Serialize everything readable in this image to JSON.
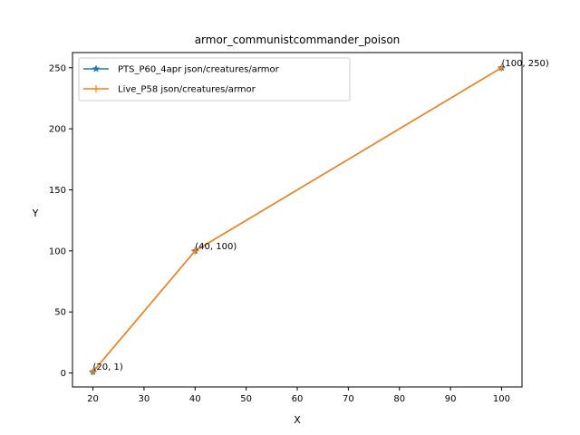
{
  "chart_data": {
    "type": "line",
    "title": "armor_communistcommander_poison",
    "xlabel": "X",
    "ylabel": "Y",
    "xlim": [
      16,
      104
    ],
    "ylim": [
      -11.45,
      262.45
    ],
    "xticks": [
      20,
      30,
      40,
      50,
      60,
      70,
      80,
      90,
      100
    ],
    "yticks": [
      0,
      50,
      100,
      150,
      200,
      250
    ],
    "grid": false,
    "legend_position": "top-left",
    "series": [
      {
        "name": "PTS_P60_4apr json/creatures/armor",
        "color": "#1f77b4",
        "marker": "star",
        "x": [
          20,
          40,
          100
        ],
        "y": [
          1,
          100,
          250
        ]
      },
      {
        "name": "Live_P58 json/creatures/armor",
        "color": "#ff7f0e",
        "marker": "plus",
        "x": [
          20,
          40,
          100
        ],
        "y": [
          1,
          100,
          250
        ]
      }
    ],
    "annotations": [
      {
        "text": "(20, 1)",
        "x": 20,
        "y": 1
      },
      {
        "text": "(40, 100)",
        "x": 40,
        "y": 100
      },
      {
        "text": "(100, 250)",
        "x": 100,
        "y": 250
      }
    ]
  }
}
